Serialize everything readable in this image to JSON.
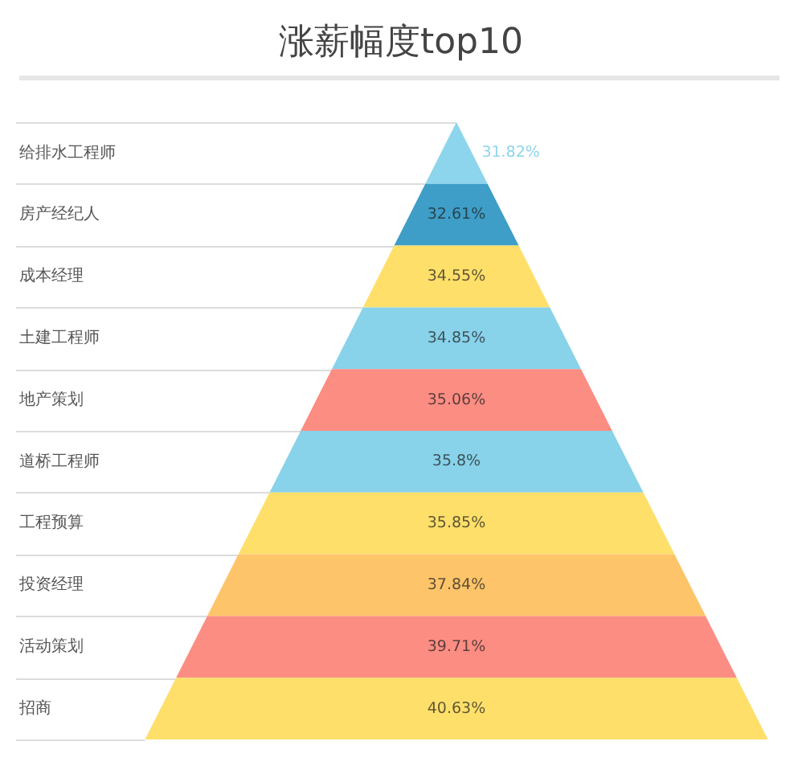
{
  "chart_data": {
    "type": "other",
    "title": "涨薪幅度top10",
    "categories": [
      "给排水工程师",
      "房产经纪人",
      "成本经理",
      "土建工程师",
      "地产策划",
      "道桥工程师",
      "工程预算",
      "投资经理",
      "活动策划",
      "招商"
    ],
    "values": [
      31.82,
      32.61,
      34.55,
      34.85,
      35.06,
      35.8,
      35.85,
      37.84,
      39.71,
      40.63
    ],
    "value_labels": [
      "31.82%",
      "32.61%",
      "34.55%",
      "34.85%",
      "35.06%",
      "35.8%",
      "35.85%",
      "37.84%",
      "39.71%",
      "40.63%"
    ],
    "colors": [
      "#8dd5ec",
      "#3e9ec8",
      "#fedf6a",
      "#88d2ea",
      "#fc8d83",
      "#88d2ea",
      "#fedf6a",
      "#fdc469",
      "#fc8d83",
      "#fedf6a"
    ]
  }
}
